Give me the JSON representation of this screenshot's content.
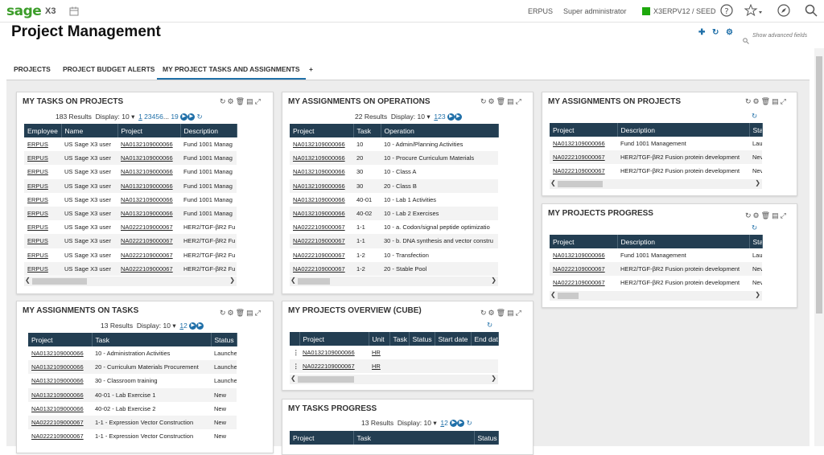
{
  "topbar": {
    "logo": "sage",
    "product": "X3",
    "company": "ERPUS",
    "user": "Super administrator",
    "folder": "X3ERPV12 / SEED"
  },
  "page": {
    "title": "Project Management",
    "show_advanced": "Show advanced fields"
  },
  "tabs": [
    "PROJECTS",
    "PROJECT BUDGET ALERTS",
    "MY PROJECT TASKS AND ASSIGNMENTS",
    "+"
  ],
  "cards": {
    "tasks_on_projects": {
      "title": "MY TASKS ON PROJECTS",
      "results": "183 Results",
      "display_label": "Display:",
      "display_value": "10",
      "pages": [
        "1",
        "2",
        "3",
        "4",
        "5",
        "6",
        "...",
        "19"
      ],
      "columns": [
        "Employee",
        "Name",
        "Project",
        "Description"
      ],
      "rows": [
        [
          "ERPUS",
          "US Sage X3 user",
          "NA0132109000066",
          "Fund 1001 Manag"
        ],
        [
          "ERPUS",
          "US Sage X3 user",
          "NA0132109000066",
          "Fund 1001 Manag"
        ],
        [
          "ERPUS",
          "US Sage X3 user",
          "NA0132109000066",
          "Fund 1001 Manag"
        ],
        [
          "ERPUS",
          "US Sage X3 user",
          "NA0132109000066",
          "Fund 1001 Manag"
        ],
        [
          "ERPUS",
          "US Sage X3 user",
          "NA0132109000066",
          "Fund 1001 Manag"
        ],
        [
          "ERPUS",
          "US Sage X3 user",
          "NA0132109000066",
          "Fund 1001 Manag"
        ],
        [
          "ERPUS",
          "US Sage X3 user",
          "NA0222109000067",
          "HER2/TGF-βR2 Fu"
        ],
        [
          "ERPUS",
          "US Sage X3 user",
          "NA0222109000067",
          "HER2/TGF-βR2 Fu"
        ],
        [
          "ERPUS",
          "US Sage X3 user",
          "NA0222109000067",
          "HER2/TGF-βR2 Fu"
        ],
        [
          "ERPUS",
          "US Sage X3 user",
          "NA0222109000067",
          "HER2/TGF-βR2 Fu"
        ]
      ]
    },
    "assignments_on_operations": {
      "title": "MY ASSIGNMENTS ON OPERATIONS",
      "results": "22 Results",
      "display_label": "Display:",
      "display_value": "10",
      "pages": [
        "1",
        "2",
        "3"
      ],
      "columns": [
        "Project",
        "Task",
        "Operation"
      ],
      "rows": [
        [
          "NA0132109000066",
          "10",
          "10 - Admin/Planning Activities"
        ],
        [
          "NA0132109000066",
          "20",
          "10 - Procure Curriculum Materials"
        ],
        [
          "NA0132109000066",
          "30",
          "10 - Class A"
        ],
        [
          "NA0132109000066",
          "30",
          "20 - Class B"
        ],
        [
          "NA0132109000066",
          "40-01",
          "10 - Lab 1 Activities"
        ],
        [
          "NA0132109000066",
          "40-02",
          "10 - Lab 2 Exercises"
        ],
        [
          "NA0222109000067",
          "1-1",
          "10 - a. Codon/signal peptide optimizatio"
        ],
        [
          "NA0222109000067",
          "1-1",
          "30 - b. DNA synthesis and vector constru"
        ],
        [
          "NA0222109000067",
          "1-2",
          "10 - Transfection"
        ],
        [
          "NA0222109000067",
          "1-2",
          "20 - Stable Pool"
        ]
      ]
    },
    "assignments_on_projects": {
      "title": "MY ASSIGNMENTS ON PROJECTS",
      "columns": [
        "Project",
        "Description",
        "Stat"
      ],
      "rows": [
        [
          "NA0132109000066",
          "Fund 1001 Management",
          "Lau"
        ],
        [
          "NA0222109000067",
          "HER2/TGF-βR2 Fusion protein development",
          "Nev"
        ],
        [
          "NA0222109000067",
          "HER2/TGF-βR2 Fusion protein development",
          "Nev"
        ]
      ]
    },
    "projects_progress": {
      "title": "MY PROJECTS PROGRESS",
      "columns": [
        "Project",
        "Description",
        "Stat"
      ],
      "rows": [
        [
          "NA0132109000066",
          "Fund 1001 Management",
          "Lau"
        ],
        [
          "NA0222109000067",
          "HER2/TGF-βR2 Fusion protein development",
          "Nev"
        ],
        [
          "NA0222109000067",
          "HER2/TGF-βR2 Fusion protein development",
          "Nev"
        ]
      ]
    },
    "assignments_on_tasks": {
      "title": "MY ASSIGNMENTS ON TASKS",
      "results": "13 Results",
      "display_label": "Display:",
      "display_value": "10",
      "pages": [
        "1",
        "2"
      ],
      "columns": [
        "Project",
        "Task",
        "Status"
      ],
      "rows": [
        [
          "NA0132109000066",
          "10 - Administration Activities",
          "Launche"
        ],
        [
          "NA0132109000066",
          "20 - Curriculum Materials Procurement",
          "Launche"
        ],
        [
          "NA0132109000066",
          "30 - Classroom training",
          "Launche"
        ],
        [
          "NA0132109000066",
          "40-01 - Lab Exercise 1",
          "New"
        ],
        [
          "NA0132109000066",
          "40-02 - Lab Exercise 2",
          "New"
        ],
        [
          "NA0222109000067",
          "1-1 - Expression Vector Construction",
          "New"
        ],
        [
          "NA0222109000067",
          "1-1 - Expression Vector Construction",
          "New"
        ]
      ]
    },
    "projects_overview": {
      "title": "MY PROJECTS OVERVIEW (CUBE)",
      "columns": [
        "Project",
        "Unit",
        "Task",
        "Status",
        "Start date",
        "End date"
      ],
      "rows": [
        [
          "NA0132109000066",
          "HR"
        ],
        [
          "NA0222109000067",
          "HR"
        ]
      ]
    },
    "tasks_progress": {
      "title": "MY TASKS PROGRESS",
      "results": "13 Results",
      "display_label": "Display:",
      "display_value": "10",
      "pages": [
        "1",
        "2"
      ],
      "columns": [
        "Project",
        "Task",
        "Status"
      ]
    }
  }
}
